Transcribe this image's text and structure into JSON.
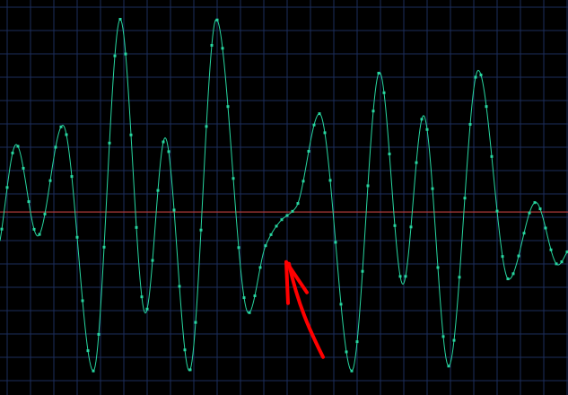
{
  "colors": {
    "background": "#000000",
    "grid": "#1c2e5c",
    "baseline": "#b03a3a",
    "trace": "#27d6a0",
    "annotation": "#ff0000"
  },
  "chart_data": {
    "type": "line",
    "title": "",
    "xlabel": "",
    "ylabel": "",
    "grid": true,
    "xlim": [
      0,
      633
    ],
    "ylim": [
      -1.9,
      2.2
    ],
    "baseline_y": 0,
    "annotation": {
      "shape": "arrow",
      "tip": [
        320,
        -0.5
      ]
    },
    "series": [
      {
        "name": "",
        "points": [
          [
            0,
            -0.3
          ],
          [
            18,
            0.7
          ],
          [
            42,
            -0.25
          ],
          [
            70,
            0.9
          ],
          [
            104,
            -1.65
          ],
          [
            134,
            2.0
          ],
          [
            162,
            -1.05
          ],
          [
            184,
            0.77
          ],
          [
            211,
            -1.65
          ],
          [
            241,
            2.0
          ],
          [
            277,
            -1.05
          ],
          [
            296,
            -0.35
          ],
          [
            312,
            -0.1
          ],
          [
            330,
            0.05
          ],
          [
            356,
            1.02
          ],
          [
            392,
            -1.65
          ],
          [
            423,
            1.45
          ],
          [
            449,
            -0.75
          ],
          [
            472,
            1.0
          ],
          [
            500,
            -1.6
          ],
          [
            533,
            1.47
          ],
          [
            567,
            -0.7
          ],
          [
            597,
            0.1
          ],
          [
            622,
            -0.55
          ],
          [
            633,
            -0.4
          ]
        ]
      }
    ]
  }
}
